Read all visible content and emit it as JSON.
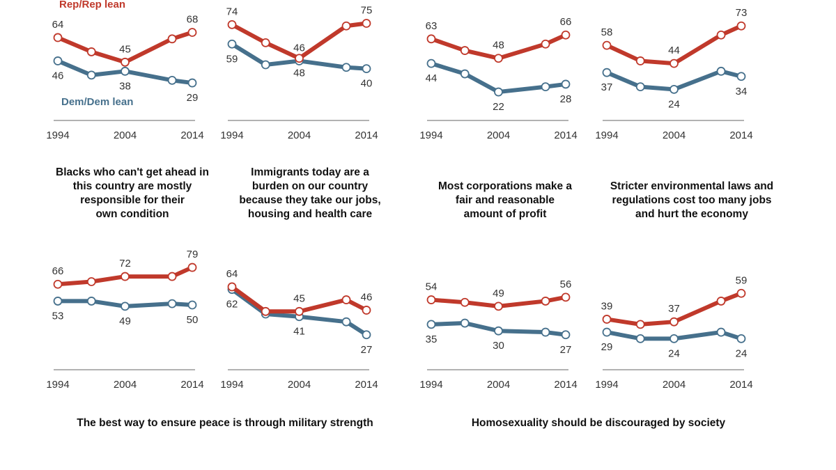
{
  "chart_data": {
    "type": "line",
    "x": [
      1994,
      1999,
      2004,
      2011,
      2014
    ],
    "x_tick_labels": [
      "1994",
      "2004",
      "2014"
    ],
    "legend": {
      "rep": "Rep/Rep lean",
      "dem": "Dem/Dem lean"
    },
    "colors": {
      "rep": "#c0392b",
      "dem": "#46708c",
      "axis": "#999999"
    },
    "grid": false,
    "ylim": [
      0,
      100
    ],
    "row_titles_middle": [
      "Blacks who can't get ahead in\nthis country are mostly\nresponsible for their\nown condition",
      "Immigrants today are a\nburden on our country\nbecause they take our jobs,\nhousing and health care",
      "Most corporations make a\nfair and reasonable\namount of profit",
      "Stricter environmental laws and\nregulations cost too many jobs\nand hurt the economy"
    ],
    "row_titles_bottom": [
      "The best way to ensure peace is through military strength",
      "Homosexuality should be discouraged by society"
    ],
    "panels": [
      {
        "rep": [
          64,
          53,
          45,
          63,
          68
        ],
        "dem": [
          46,
          35,
          38,
          31,
          29
        ]
      },
      {
        "rep": [
          74,
          60,
          48,
          73,
          75
        ],
        "dem": [
          59,
          43,
          46,
          41,
          40
        ]
      },
      {
        "rep": [
          63,
          54,
          48,
          59,
          66
        ],
        "dem": [
          44,
          36,
          22,
          26,
          28
        ]
      },
      {
        "rep": [
          58,
          46,
          44,
          66,
          73
        ],
        "dem": [
          37,
          26,
          24,
          38,
          34
        ]
      },
      {
        "rep": [
          66,
          68,
          72,
          72,
          79
        ],
        "dem": [
          53,
          53,
          49,
          51,
          50
        ]
      },
      {
        "rep": [
          64,
          45,
          45,
          54,
          46
        ],
        "dem": [
          62,
          43,
          41,
          37,
          27
        ]
      },
      {
        "rep": [
          54,
          52,
          49,
          53,
          56
        ],
        "dem": [
          35,
          36,
          30,
          29,
          27
        ]
      },
      {
        "rep": [
          39,
          35,
          37,
          53,
          59
        ],
        "dem": [
          29,
          24,
          24,
          29,
          24
        ]
      }
    ]
  }
}
